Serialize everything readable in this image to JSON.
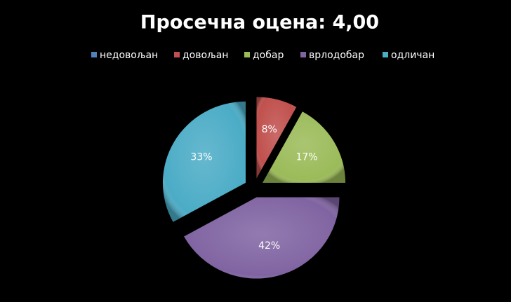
{
  "chart_data": {
    "type": "pie",
    "title": "Просечна оцена: 4,00",
    "categories": [
      "недовољан",
      "довољан",
      "добар",
      "врлодобар",
      "одличан"
    ],
    "values": [
      0,
      8,
      17,
      42,
      33
    ],
    "value_labels": [
      null,
      "8%",
      "17%",
      "42%",
      "33%"
    ],
    "colors": [
      "#4f81bd",
      "#c0504d",
      "#9bbb59",
      "#8064a2",
      "#4bacc6"
    ],
    "legend": "top"
  }
}
